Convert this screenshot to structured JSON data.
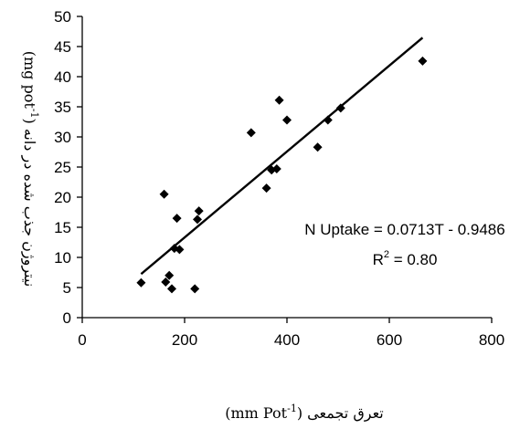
{
  "chart_data": {
    "type": "scatter",
    "title": "",
    "xlabel": "تعرق تجمعی (mm Pot",
    "xlabel_sup": "-1",
    "xlabel_close": ")",
    "ylabel": "نیتروژن جذب شده در دانه (mg pot",
    "ylabel_sup": "-1",
    "ylabel_close": ")",
    "xlim": [
      0,
      800
    ],
    "ylim": [
      0,
      50
    ],
    "x_ticks": [
      0,
      200,
      400,
      600,
      800
    ],
    "y_ticks": [
      0,
      5,
      10,
      15,
      20,
      25,
      30,
      35,
      40,
      45,
      50
    ],
    "grid": false,
    "legend": "none",
    "marker": "diamond",
    "marker_color": "#000000",
    "series": [
      {
        "x": [
          115,
          160,
          163,
          170,
          175,
          180,
          185,
          190,
          220,
          225,
          228,
          330,
          360,
          370,
          380,
          385,
          400,
          460,
          480,
          505,
          665
        ],
        "y": [
          5.8,
          20.5,
          5.9,
          7.0,
          4.8,
          11.5,
          16.5,
          11.3,
          4.8,
          16.3,
          17.7,
          30.7,
          21.5,
          24.5,
          24.7,
          36.1,
          32.8,
          28.3,
          32.8,
          34.8,
          42.6
        ]
      }
    ],
    "trendline": {
      "slope": 0.0713,
      "intercept": -0.9486,
      "x_range": [
        115,
        665
      ],
      "equation": "N Uptake = 0.0713T - 0.9486",
      "r2_prefix": "R",
      "r2_sup": "2",
      "r2_value": " = 0.80"
    }
  }
}
